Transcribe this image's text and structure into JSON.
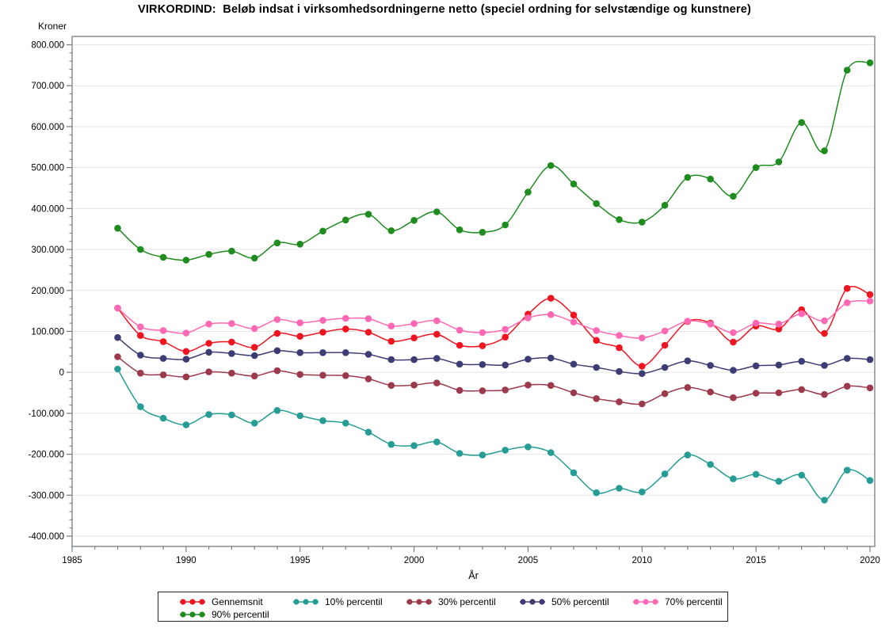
{
  "title": "VIRKORDIND:  Beløb indsat i virksomhedsordningerne netto (speciel ordning for selvstændige og kunstnere)",
  "colors": {
    "frame": "#8d969c",
    "tick": "#6f787e",
    "grid": "#e5e5e5",
    "text": "#000000",
    "legend_border": "#222222"
  },
  "chart_data": {
    "type": "line",
    "title": "VIRKORDIND:  Beløb indsat i virksomhedsordningerne netto (speciel ordning for selvstændige og kunstnere)",
    "xlabel": "År",
    "ylabel": "Kroner",
    "xlim": [
      1985,
      2020
    ],
    "ylim": [
      -400000,
      800000
    ],
    "grid": "horizontal",
    "legend_position": "bottom",
    "x_tick_labels": [
      "1985",
      "1990",
      "1995",
      "2000",
      "2005",
      "2010",
      "2015",
      "2020"
    ],
    "x_major_step": 5,
    "x_minor_step": 1,
    "y_tick_labels": [
      "800.000",
      "700.000",
      "600.000",
      "500.000",
      "400.000",
      "300.000",
      "200.000",
      "100.000",
      "0",
      "-100.000",
      "-200.000",
      "-300.000",
      "-400.000"
    ],
    "y_major_step": 100000,
    "y_minor_step": 20000,
    "x": [
      1987,
      1988,
      1989,
      1990,
      1991,
      1992,
      1993,
      1994,
      1995,
      1996,
      1997,
      1998,
      1999,
      2000,
      2001,
      2002,
      2003,
      2004,
      2005,
      2006,
      2007,
      2008,
      2009,
      2010,
      2011,
      2012,
      2013,
      2014,
      2015,
      2016,
      2017,
      2018,
      2019,
      2020
    ],
    "series": [
      {
        "name": "Gennemsnit",
        "color": "#ee1420",
        "values": [
          157000,
          90000,
          75000,
          51000,
          71000,
          74000,
          61000,
          95000,
          88000,
          98000,
          106000,
          98000,
          76000,
          84000,
          93000,
          66000,
          65000,
          86000,
          142000,
          181000,
          140000,
          78000,
          60000,
          15000,
          66000,
          124000,
          120000,
          74000,
          113000,
          106000,
          153000,
          95000,
          205000,
          190000
        ]
      },
      {
        "name": "10% percentil",
        "color": "#259d94",
        "values": [
          8000,
          -84000,
          -112000,
          -128000,
          -103000,
          -104000,
          -124000,
          -93000,
          -106000,
          -118000,
          -124000,
          -146000,
          -176000,
          -179000,
          -170000,
          -198000,
          -202000,
          -190000,
          -182000,
          -196000,
          -245000,
          -294000,
          -283000,
          -292000,
          -248000,
          -202000,
          -225000,
          -260000,
          -249000,
          -266000,
          -251000,
          -312000,
          -239000,
          -264000
        ]
      },
      {
        "name": "30% percentil",
        "color": "#9c3a4c",
        "values": [
          38000,
          -2000,
          -6000,
          -11000,
          1000,
          -2000,
          -9000,
          4000,
          -5000,
          -7000,
          -8000,
          -16000,
          -32000,
          -31000,
          -26000,
          -44000,
          -45000,
          -43000,
          -31000,
          -32000,
          -50000,
          -64000,
          -72000,
          -77000,
          -52000,
          -37000,
          -48000,
          -62000,
          -51000,
          -50000,
          -42000,
          -54000,
          -34000,
          -38000
        ]
      },
      {
        "name": "50% percentil",
        "color": "#3d3d75",
        "values": [
          85000,
          42000,
          34000,
          32000,
          49000,
          46000,
          41000,
          53000,
          48000,
          48000,
          48000,
          44000,
          31000,
          31000,
          34000,
          20000,
          19000,
          18000,
          32000,
          35000,
          20000,
          12000,
          2000,
          -3000,
          12000,
          28000,
          17000,
          5000,
          16000,
          18000,
          27000,
          17000,
          34000,
          31000
        ]
      },
      {
        "name": "70% percentil",
        "color": "#ff69b4",
        "values": [
          157000,
          111000,
          102000,
          96000,
          118000,
          119000,
          107000,
          129000,
          121000,
          127000,
          132000,
          131000,
          113000,
          119000,
          126000,
          103000,
          97000,
          105000,
          133000,
          141000,
          123000,
          102000,
          90000,
          84000,
          101000,
          125000,
          118000,
          97000,
          120000,
          118000,
          143000,
          126000,
          170000,
          174000
        ]
      },
      {
        "name": "90% percentil",
        "color": "#1e8c1e",
        "values": [
          352000,
          300000,
          281000,
          274000,
          288000,
          296000,
          279000,
          316000,
          313000,
          345000,
          372000,
          386000,
          346000,
          371000,
          392000,
          348000,
          342000,
          360000,
          440000,
          505000,
          460000,
          412000,
          373000,
          367000,
          408000,
          476000,
          472000,
          430000,
          500000,
          514000,
          610000,
          541000,
          738000,
          756000
        ]
      }
    ],
    "legend_rows": [
      [
        0,
        1,
        2,
        3,
        4
      ],
      [
        5
      ]
    ]
  }
}
